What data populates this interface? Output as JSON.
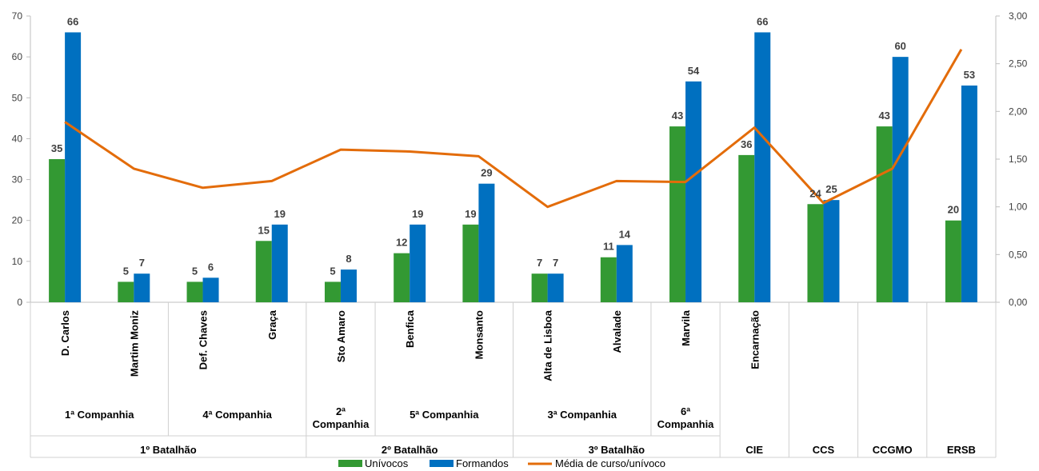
{
  "chart_data": {
    "type": "bar",
    "title": "",
    "xlabel": "",
    "ylabel": "",
    "ylim": [
      0,
      70
    ],
    "y_ticks": [
      "0",
      "10",
      "20",
      "30",
      "40",
      "50",
      "60",
      "70"
    ],
    "y2lim": [
      0,
      3
    ],
    "y2_ticks": [
      "0,00",
      "0,50",
      "1,00",
      "1,50",
      "2,00",
      "2,50",
      "3,00"
    ],
    "grid": false,
    "legend_position": "bottom",
    "categories": [
      "D. Carlos",
      "Martim Moniz",
      "Def. Chaves",
      "Graça",
      "Sto Amaro",
      "Benfica",
      "Monsanto",
      "Alta de Lisboa",
      "Alvalade",
      "Marvila",
      "Encarnação",
      "",
      "",
      ""
    ],
    "companies": [
      {
        "label": "1ª Companhia",
        "span": [
          0,
          1
        ]
      },
      {
        "label": "4ª Companhia",
        "span": [
          2,
          3
        ]
      },
      {
        "label_lines": [
          "2ª",
          "Companhia"
        ],
        "span": [
          4,
          4
        ]
      },
      {
        "label": "5ª Companhia",
        "span": [
          5,
          6
        ]
      },
      {
        "label": "3ª Companhia",
        "span": [
          7,
          8
        ]
      },
      {
        "label_lines": [
          "6ª",
          "Companhia"
        ],
        "span": [
          9,
          9
        ]
      }
    ],
    "battalions": [
      {
        "label": "1º Batalhão",
        "span": [
          0,
          3
        ]
      },
      {
        "label": "2º Batalhão",
        "span": [
          4,
          6
        ]
      },
      {
        "label": "3º Batalhão",
        "span": [
          7,
          9
        ]
      },
      {
        "label": "CIE",
        "span": [
          10,
          10
        ]
      },
      {
        "label": "CCS",
        "span": [
          11,
          11
        ]
      },
      {
        "label": "CCGMO",
        "span": [
          12,
          12
        ]
      },
      {
        "label": "ERSB",
        "span": [
          13,
          13
        ]
      }
    ],
    "series": [
      {
        "name": "Unívocos",
        "type": "bar",
        "color": "#339933",
        "values": [
          35,
          5,
          5,
          15,
          5,
          12,
          19,
          7,
          11,
          43,
          36,
          24,
          43,
          20
        ]
      },
      {
        "name": "Formandos",
        "type": "bar",
        "color": "#0070C0",
        "values": [
          66,
          7,
          6,
          19,
          8,
          19,
          29,
          7,
          14,
          54,
          66,
          25,
          60,
          53
        ]
      },
      {
        "name": "Média de curso/unívoco",
        "type": "line",
        "axis": "secondary",
        "color": "#E36C0A",
        "values": [
          1.89,
          1.4,
          1.2,
          1.27,
          1.6,
          1.58,
          1.53,
          1.0,
          1.27,
          1.26,
          1.83,
          1.04,
          1.4,
          2.65
        ]
      }
    ]
  }
}
